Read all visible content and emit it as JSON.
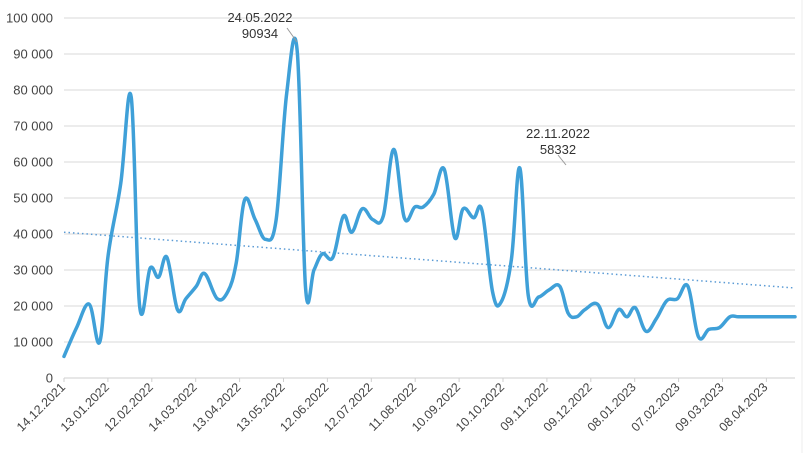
{
  "chart_data": {
    "type": "line",
    "title": "",
    "xlabel": "",
    "ylabel": "",
    "ylim": [
      0,
      100000
    ],
    "yticks": [
      0,
      10000,
      20000,
      30000,
      40000,
      50000,
      60000,
      70000,
      80000,
      90000,
      100000
    ],
    "ytick_labels": [
      "0",
      "10 000",
      "20 000",
      "30 000",
      "40 000",
      "50 000",
      "60 000",
      "70 000",
      "80 000",
      "90 000",
      "100 000"
    ],
    "xtick_labels": [
      "14.12.2021",
      "13.01.2022",
      "12.02.2022",
      "14.03.2022",
      "13.04.2022",
      "13.05.2022",
      "12.06.2022",
      "12.07.2022",
      "11.08.2022",
      "10.09.2022",
      "10.10.2022",
      "09.11.2022",
      "09.12.2022",
      "08.01.2023",
      "07.02.2023",
      "09.03.2023",
      "08.04.2023"
    ],
    "grid": true,
    "legend": null,
    "line_color": "#3fa0d8",
    "trend_color": "#5b9bd5",
    "series": [
      {
        "name": "value",
        "x_days": [
          0,
          6,
          12,
          17,
          21,
          27,
          32,
          36,
          41,
          45,
          49,
          54,
          58,
          63,
          67,
          73,
          78,
          82,
          86,
          91,
          96,
          101,
          106,
          111,
          115,
          119,
          123,
          128,
          133,
          137,
          142,
          147,
          152,
          157,
          162,
          167,
          171,
          176,
          181,
          186,
          190,
          195,
          199,
          204,
          208,
          213,
          217,
          221,
          226,
          231,
          236,
          240,
          244,
          248,
          254,
          259,
          264,
          268,
          272,
          277,
          282,
          287,
          292,
          297,
          302,
          307,
          312,
          317,
          321,
          326,
          331,
          335,
          339,
          343,
          348
        ],
        "values": [
          6000,
          14000,
          20500,
          10000,
          34000,
          54000,
          78000,
          20000,
          30500,
          28000,
          33500,
          19000,
          22000,
          25500,
          29000,
          22000,
          24000,
          32000,
          49500,
          44000,
          38500,
          44000,
          79000,
          90934,
          25000,
          30000,
          34500,
          33500,
          45000,
          40500,
          47000,
          44000,
          45000,
          63500,
          44500,
          47500,
          47500,
          51000,
          58000,
          39000,
          47000,
          44500,
          46500,
          24000,
          21000,
          33000,
          58332,
          23000,
          22500,
          24500,
          25500,
          18000,
          17000,
          19000,
          20500,
          14000,
          19000,
          17000,
          19500,
          13000,
          16500,
          21500,
          22000,
          25500,
          11500,
          13500,
          14000,
          17000,
          17000,
          17000,
          17000,
          17000,
          17000,
          17000,
          17000
        ]
      }
    ],
    "trendline": {
      "start_value": 40500,
      "end_value": 25000
    },
    "annotations": [
      {
        "date": "24.05.2022",
        "value": "90934"
      },
      {
        "date": "22.11.2022",
        "value": "58332"
      }
    ]
  }
}
